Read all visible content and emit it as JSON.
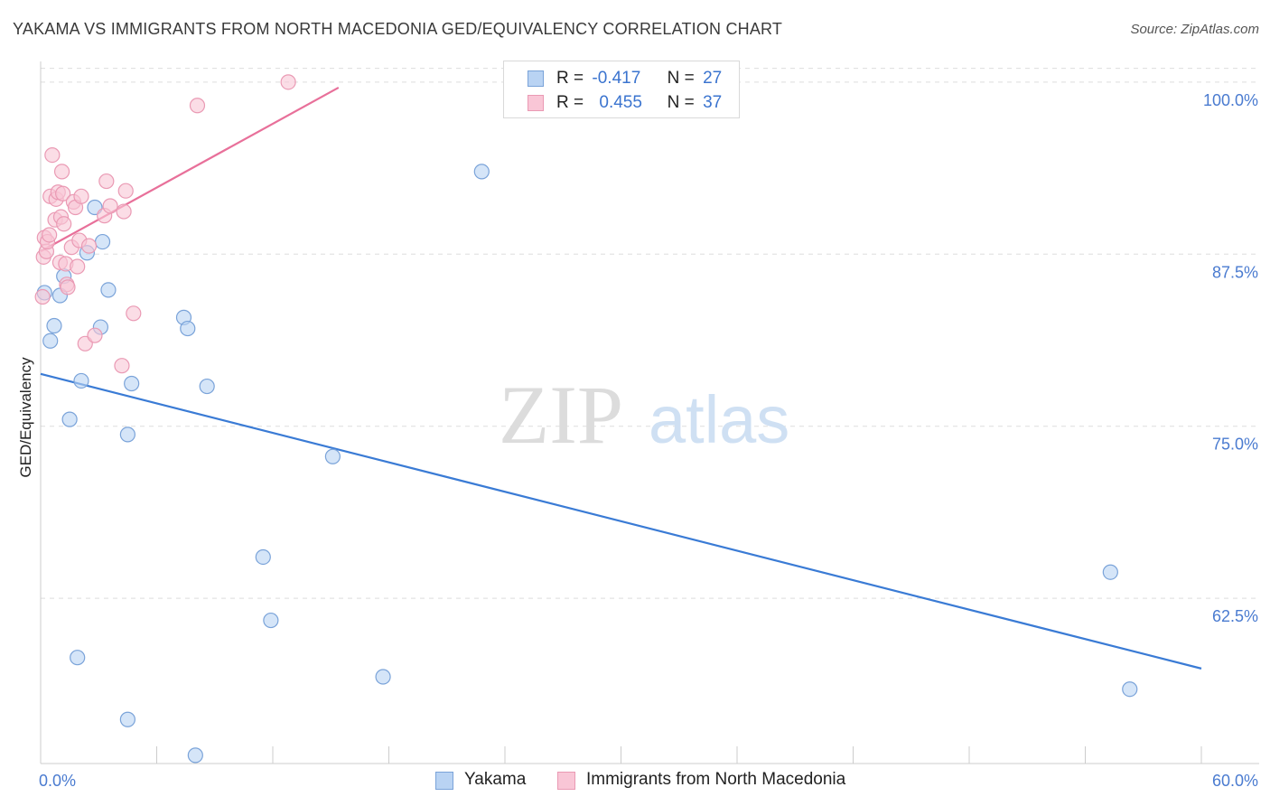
{
  "header": {
    "title": "YAKAMA VS IMMIGRANTS FROM NORTH MACEDONIA GED/EQUIVALENCY CORRELATION CHART",
    "source": "Source: ZipAtlas.com"
  },
  "watermark": {
    "zip": "ZIP",
    "atlas": "atlas"
  },
  "legend": {
    "row1": {
      "r_label": "R =",
      "r_value": "-0.417",
      "n_label": "N =",
      "n_value": "27"
    },
    "row2": {
      "r_label": "R =",
      "r_value": "0.455",
      "n_label": "N =",
      "n_value": "37"
    }
  },
  "bottom_legend": {
    "series1": "Yakama",
    "series2": "Immigrants from North Macedonia"
  },
  "colors": {
    "blue_fill": "#b9d3f3",
    "blue_stroke": "#7aa3d9",
    "blue_line": "#3a7bd5",
    "pink_fill": "#f9c6d6",
    "pink_stroke": "#ea9ab4",
    "pink_line": "#e8709a",
    "tick_text": "#4a7bd0",
    "grid": "#dddddd"
  },
  "chart_data": {
    "type": "scatter",
    "title": "YAKAMA VS IMMIGRANTS FROM NORTH MACEDONIA GED/EQUIVALENCY CORRELATION CHART",
    "xlabel": "",
    "ylabel": "GED/Equivalency",
    "xlim": [
      0,
      60
    ],
    "ylim": [
      50.5,
      101.5
    ],
    "x_tick_labels": [
      "0.0%",
      "60.0%"
    ],
    "y_ticks": [
      62.5,
      75.0,
      87.5,
      100.0
    ],
    "y_tick_labels": [
      "62.5%",
      "75.0%",
      "87.5%",
      "100.0%"
    ],
    "grid": true,
    "legend_position": "top-center",
    "series": [
      {
        "name": "Yakama",
        "color": "#b9d3f3",
        "r": -0.417,
        "n": 27,
        "points": [
          [
            0.2,
            84.7
          ],
          [
            0.5,
            81.2
          ],
          [
            0.7,
            82.3
          ],
          [
            1.0,
            84.5
          ],
          [
            1.2,
            85.9
          ],
          [
            1.5,
            75.5
          ],
          [
            1.9,
            58.2
          ],
          [
            2.1,
            78.3
          ],
          [
            2.4,
            87.6
          ],
          [
            2.8,
            90.9
          ],
          [
            3.2,
            88.4
          ],
          [
            3.1,
            82.2
          ],
          [
            3.5,
            84.9
          ],
          [
            4.5,
            74.4
          ],
          [
            4.7,
            78.1
          ],
          [
            4.5,
            53.7
          ],
          [
            7.4,
            82.9
          ],
          [
            7.6,
            82.1
          ],
          [
            8.0,
            51.1
          ],
          [
            8.6,
            77.9
          ],
          [
            11.5,
            65.5
          ],
          [
            11.9,
            60.9
          ],
          [
            15.1,
            72.8
          ],
          [
            17.7,
            56.8
          ],
          [
            22.8,
            93.5
          ],
          [
            55.3,
            64.4
          ],
          [
            56.3,
            55.9
          ]
        ],
        "trend": {
          "x": [
            0,
            60
          ],
          "y": [
            78.8,
            57.4
          ]
        }
      },
      {
        "name": "Immigrants from North Macedonia",
        "color": "#f9c6d6",
        "r": 0.455,
        "n": 37,
        "points": [
          [
            0.1,
            84.4
          ],
          [
            0.15,
            87.3
          ],
          [
            0.2,
            88.7
          ],
          [
            0.3,
            87.7
          ],
          [
            0.35,
            88.4
          ],
          [
            0.45,
            88.9
          ],
          [
            0.5,
            91.7
          ],
          [
            0.6,
            94.7
          ],
          [
            0.75,
            90.0
          ],
          [
            0.8,
            91.5
          ],
          [
            0.9,
            92.0
          ],
          [
            1.0,
            86.9
          ],
          [
            1.05,
            90.2
          ],
          [
            1.1,
            93.5
          ],
          [
            1.15,
            91.9
          ],
          [
            1.2,
            89.7
          ],
          [
            1.3,
            86.8
          ],
          [
            1.35,
            85.3
          ],
          [
            1.4,
            85.1
          ],
          [
            1.6,
            88.0
          ],
          [
            1.7,
            91.3
          ],
          [
            1.8,
            90.9
          ],
          [
            1.9,
            86.6
          ],
          [
            2.0,
            88.5
          ],
          [
            2.1,
            91.7
          ],
          [
            2.3,
            81.0
          ],
          [
            2.5,
            88.1
          ],
          [
            2.8,
            81.6
          ],
          [
            3.3,
            90.3
          ],
          [
            3.4,
            92.8
          ],
          [
            3.6,
            91.0
          ],
          [
            4.2,
            79.4
          ],
          [
            4.4,
            92.1
          ],
          [
            4.8,
            83.2
          ],
          [
            8.1,
            98.3
          ],
          [
            12.8,
            100.0
          ],
          [
            4.3,
            90.6
          ]
        ],
        "trend": {
          "x": [
            0,
            15.4
          ],
          "y": [
            87.7,
            99.6
          ]
        }
      }
    ]
  }
}
